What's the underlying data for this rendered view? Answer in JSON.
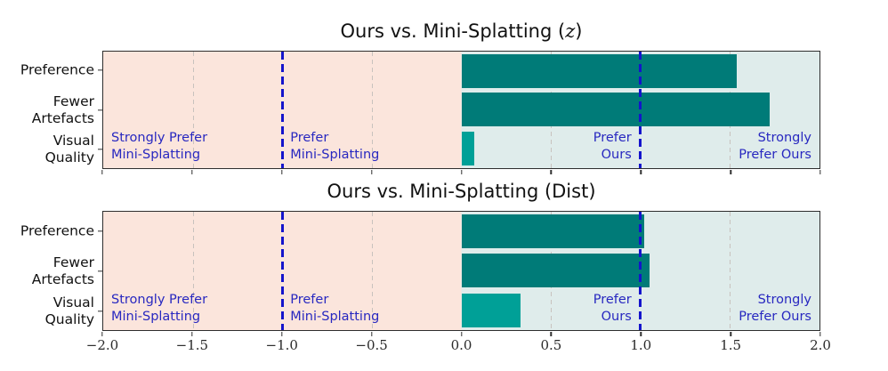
{
  "figure": {
    "colors": {
      "negative_background": "#fbe5dc",
      "positive_background": "#dfeceb",
      "bar_dark_teal": "#007b78",
      "bar_light_teal": "#00a097",
      "reference_line_blue": "#1414cc",
      "region_label_blue": "#2828c0",
      "gridline_gray": "#c8c2be"
    },
    "region_labels": {
      "strongly_prefer_left": "Strongly Prefer\nMini-Splatting",
      "prefer_left": "Prefer\nMini-Splatting",
      "prefer_right": "Prefer\nOurs",
      "strongly_prefer_right": "Strongly\nPrefer Ours"
    }
  },
  "chart_data": [
    {
      "type": "bar",
      "orientation": "horizontal",
      "title": "Ours vs. Mini-Splatting (z)",
      "title_pre": "Ours vs. Mini-Splatting (",
      "title_math": "z",
      "title_post": ")",
      "categories": [
        "Preference",
        "Fewer\nArtefacts",
        "Visual\nQuality"
      ],
      "values": [
        1.54,
        1.72,
        0.07
      ],
      "bar_colors": [
        "#007b78",
        "#007b78",
        "#00a097"
      ],
      "xlim": [
        -2.0,
        2.0
      ],
      "gridlines": [
        -1.5,
        -0.5,
        0.5,
        1.5
      ],
      "reference_lines": [
        -1.0,
        1.0
      ],
      "legend": "none"
    },
    {
      "type": "bar",
      "orientation": "horizontal",
      "title": "Ours vs. Mini-Splatting (Dist)",
      "title_pre": "Ours vs. Mini-Splatting (Dist)",
      "title_math": "",
      "title_post": "",
      "categories": [
        "Preference",
        "Fewer\nArtefacts",
        "Visual\nQuality"
      ],
      "values": [
        1.02,
        1.05,
        0.33
      ],
      "bar_colors": [
        "#007b78",
        "#007b78",
        "#00a097"
      ],
      "xlim": [
        -2.0,
        2.0
      ],
      "gridlines": [
        -1.5,
        -0.5,
        0.5,
        1.5
      ],
      "reference_lines": [
        -1.0,
        1.0
      ],
      "legend": "none"
    }
  ],
  "x_axis": {
    "ticks": [
      "−2.0",
      "−1.5",
      "−1.0",
      "−0.5",
      "0.0",
      "0.5",
      "1.0",
      "1.5",
      "2.0"
    ]
  }
}
